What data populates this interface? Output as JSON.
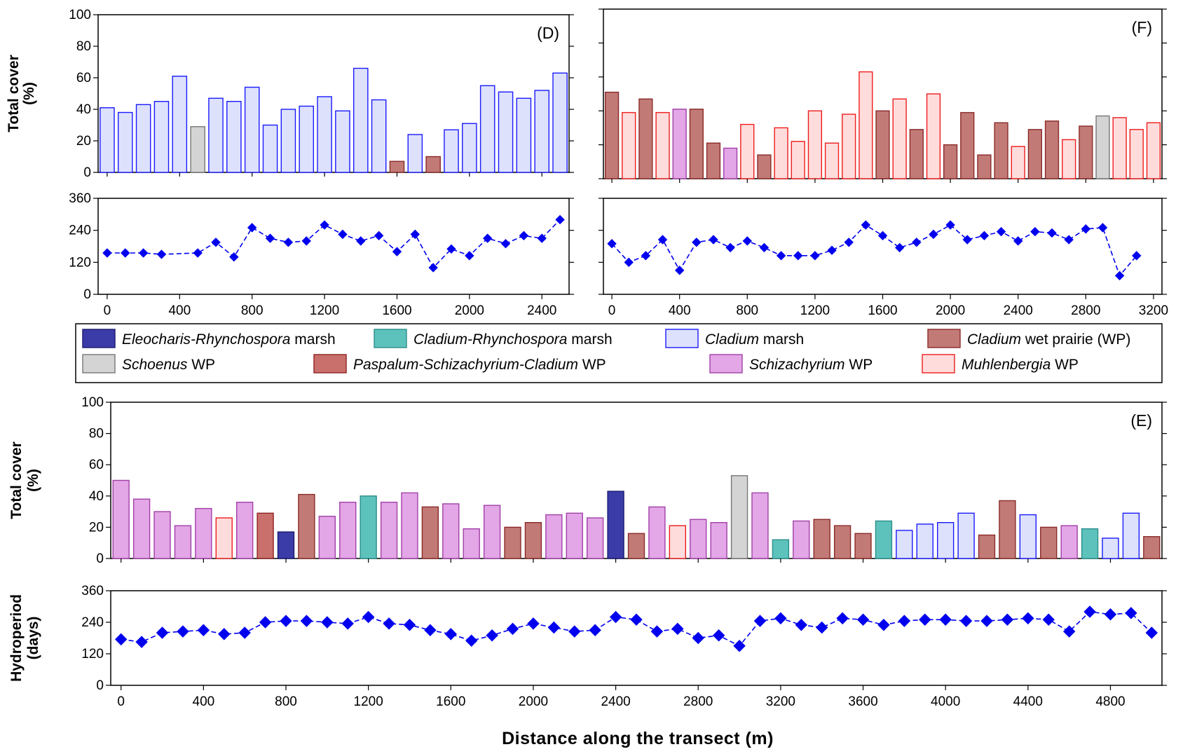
{
  "x_axis_label": "Distance along the transect (m)",
  "legend": [
    {
      "key": "ER",
      "genus": "Eleocharis-Rhynchospora",
      "suffix": " marsh",
      "color": "#3c3ca8",
      "stroke": "#1a1a70"
    },
    {
      "key": "CR",
      "genus": "Cladium-Rhynchospora",
      "suffix": " marsh",
      "color": "#5ec2bc",
      "stroke": "#2a8e8a"
    },
    {
      "key": "CM",
      "genus": "Cladium",
      "suffix": " marsh",
      "color": "#dde1fb",
      "stroke": "#1a1aff"
    },
    {
      "key": "CWP",
      "genus": "Cladium",
      "suffix": " wet prairie (WP)",
      "color": "#c27a76",
      "stroke": "#8a2a2a"
    },
    {
      "key": "SCH",
      "genus": "Schoenus",
      "suffix": " WP",
      "color": "#d4d4d4",
      "stroke": "#777777"
    },
    {
      "key": "PSC",
      "genus": "Paspalum-Schizachyrium-Cladium",
      "suffix": " WP",
      "color": "#c9706c",
      "stroke": "#8e2222"
    },
    {
      "key": "SZ",
      "genus": "Schizachyrium",
      "suffix": " WP",
      "color": "#e3a6e6",
      "stroke": "#a040a8"
    },
    {
      "key": "MU",
      "genus": "Muhlenbergia",
      "suffix": " WP",
      "color": "#ffdcdc",
      "stroke": "#ee1c1c"
    }
  ],
  "chart_data": [
    {
      "type": "bar",
      "panel": "(D)",
      "ylabel": [
        "Total cover",
        "(%)"
      ],
      "ylim": [
        0,
        100
      ],
      "yticks": [
        0,
        20,
        40,
        60,
        80,
        100
      ],
      "x": [
        0,
        100,
        200,
        300,
        400,
        500,
        600,
        700,
        800,
        900,
        1000,
        1100,
        1200,
        1300,
        1400,
        1500,
        1600,
        1700,
        1800,
        1900,
        2000,
        2100,
        2200,
        2300,
        2400,
        2500
      ],
      "values": [
        41,
        38,
        43,
        45,
        61,
        29,
        47,
        45,
        54,
        30,
        40,
        42,
        48,
        39,
        66,
        46,
        7,
        24,
        10,
        27,
        31,
        55,
        51,
        47,
        52,
        63
      ],
      "community": [
        "CM",
        "CM",
        "CM",
        "CM",
        "CM",
        "SCH",
        "CM",
        "CM",
        "CM",
        "CM",
        "CM",
        "CM",
        "CM",
        "CM",
        "CM",
        "CM",
        "CWP",
        "CM",
        "CWP",
        "CM",
        "CM",
        "CM",
        "CM",
        "CM",
        "CM",
        "CM"
      ]
    },
    {
      "type": "line",
      "ylabel": [
        "Hydroperiod",
        "(days)"
      ],
      "ylim": [
        0,
        360
      ],
      "yticks": [
        0,
        120,
        240,
        360
      ],
      "xlim": [
        -50,
        2550
      ],
      "xticks": [
        0,
        400,
        800,
        1200,
        1600,
        2000,
        2400
      ],
      "x": [
        0,
        100,
        200,
        300,
        500,
        600,
        700,
        800,
        900,
        1000,
        1100,
        1200,
        1300,
        1400,
        1500,
        1600,
        1700,
        1800,
        1900,
        2000,
        2100,
        2200,
        2300,
        2400,
        2500
      ],
      "values": [
        155,
        155,
        155,
        150,
        155,
        195,
        140,
        250,
        210,
        195,
        200,
        260,
        225,
        200,
        220,
        160,
        225,
        100,
        170,
        145,
        210,
        190,
        220,
        210,
        280
      ],
      "series_color": "#0000ee",
      "marker_size": "small"
    },
    {
      "type": "bar",
      "panel": "(F)",
      "ylabel": [],
      "ylim": [
        0,
        100
      ],
      "yticks": [
        0,
        20,
        40,
        60,
        80,
        100
      ],
      "show_tick_labels": false,
      "x": [
        0,
        100,
        200,
        300,
        400,
        500,
        600,
        700,
        800,
        900,
        1000,
        1100,
        1200,
        1300,
        1400,
        1500,
        1600,
        1700,
        1800,
        1900,
        2000,
        2100,
        2200,
        2300,
        2400,
        2500,
        2600,
        2700,
        2800,
        2900,
        3000,
        3100,
        3200
      ],
      "values": [
        51,
        39,
        47,
        39,
        41,
        41,
        21,
        18,
        32,
        14,
        30,
        22,
        40,
        21,
        38,
        63,
        40,
        47,
        29,
        50,
        20,
        39,
        14,
        33,
        19,
        29,
        34,
        23,
        31,
        37,
        36,
        29,
        33
      ],
      "community": [
        "CWP",
        "MU",
        "CWP",
        "MU",
        "SZ",
        "CWP",
        "CWP",
        "SZ",
        "MU",
        "CWP",
        "MU",
        "MU",
        "MU",
        "MU",
        "MU",
        "MU",
        "CWP",
        "MU",
        "CWP",
        "MU",
        "CWP",
        "CWP",
        "CWP",
        "CWP",
        "MU",
        "CWP",
        "CWP",
        "MU",
        "CWP",
        "SCH",
        "MU",
        "MU",
        "MU"
      ]
    },
    {
      "type": "line",
      "ylabel": [],
      "ylim": [
        0,
        360
      ],
      "yticks": [
        0,
        120,
        240,
        360
      ],
      "show_y_tick_labels": false,
      "xlim": [
        -50,
        3250
      ],
      "xticks": [
        0,
        400,
        800,
        1200,
        1600,
        2000,
        2400,
        2800,
        3200
      ],
      "x": [
        0,
        100,
        200,
        300,
        400,
        500,
        600,
        700,
        800,
        900,
        1000,
        1100,
        1200,
        1300,
        1400,
        1500,
        1600,
        1700,
        1800,
        1900,
        2000,
        2100,
        2200,
        2300,
        2400,
        2500,
        2600,
        2700,
        2800,
        2900,
        3000,
        3100
      ],
      "values": [
        190,
        120,
        145,
        205,
        90,
        195,
        205,
        175,
        200,
        175,
        145,
        145,
        145,
        165,
        195,
        260,
        220,
        175,
        195,
        225,
        260,
        205,
        220,
        235,
        200,
        235,
        230,
        205,
        245,
        250,
        70,
        145
      ],
      "series_color": "#0000ee",
      "marker_size": "small"
    },
    {
      "type": "bar",
      "panel": "(E)",
      "ylabel": [
        "Total cover",
        "(%)"
      ],
      "ylim": [
        0,
        100
      ],
      "yticks": [
        0,
        20,
        40,
        60,
        80,
        100
      ],
      "x": [
        0,
        100,
        200,
        300,
        400,
        500,
        600,
        700,
        800,
        900,
        1000,
        1100,
        1200,
        1300,
        1400,
        1500,
        1600,
        1700,
        1800,
        1900,
        2000,
        2100,
        2200,
        2300,
        2400,
        2500,
        2600,
        2700,
        2800,
        2900,
        3000,
        3100,
        3200,
        3300,
        3400,
        3500,
        3600,
        3700,
        3800,
        3900,
        4000,
        4100,
        4200,
        4300,
        4400,
        4500,
        4600,
        4700,
        4800,
        4900,
        5000
      ],
      "values": [
        50,
        38,
        30,
        21,
        32,
        26,
        36,
        29,
        17,
        41,
        27,
        36,
        40,
        36,
        42,
        33,
        35,
        19,
        34,
        20,
        23,
        28,
        29,
        26,
        43,
        16,
        33,
        21,
        25,
        23,
        53,
        42,
        12,
        24,
        25,
        21,
        16,
        24,
        18,
        22,
        23,
        29,
        15,
        37,
        28,
        20,
        21,
        19,
        13,
        29,
        14
      ],
      "community": [
        "SZ",
        "SZ",
        "SZ",
        "SZ",
        "SZ",
        "MU",
        "SZ",
        "PSC",
        "ER",
        "CWP",
        "SZ",
        "SZ",
        "CR",
        "SZ",
        "SZ",
        "CWP",
        "SZ",
        "SZ",
        "SZ",
        "CWP",
        "CWP",
        "SZ",
        "SZ",
        "SZ",
        "ER",
        "CWP",
        "SZ",
        "MU",
        "SZ",
        "SZ",
        "SCH",
        "SZ",
        "CR",
        "SZ",
        "CWP",
        "CWP",
        "CWP",
        "CR",
        "CM",
        "CM",
        "CM",
        "CM",
        "CWP",
        "CWP",
        "CM",
        "CWP",
        "SZ",
        "CR",
        "CM",
        "CM",
        "CWP"
      ]
    },
    {
      "type": "line",
      "ylabel": [
        "Hydroperiod",
        "(days)"
      ],
      "ylim": [
        0,
        360
      ],
      "yticks": [
        0,
        120,
        240,
        360
      ],
      "xlim": [
        -50,
        5050
      ],
      "xticks": [
        0,
        400,
        800,
        1200,
        1600,
        2000,
        2400,
        2800,
        3200,
        3600,
        4000,
        4400,
        4800
      ],
      "x": [
        0,
        100,
        200,
        300,
        400,
        500,
        600,
        700,
        800,
        900,
        1000,
        1100,
        1200,
        1300,
        1400,
        1500,
        1600,
        1700,
        1800,
        1900,
        2000,
        2100,
        2200,
        2300,
        2400,
        2500,
        2600,
        2700,
        2800,
        2900,
        3000,
        3100,
        3200,
        3300,
        3400,
        3500,
        3600,
        3700,
        3800,
        3900,
        4000,
        4100,
        4200,
        4300,
        4400,
        4500,
        4600,
        4700,
        4800,
        4900,
        5000
      ],
      "values": [
        175,
        165,
        200,
        205,
        210,
        195,
        200,
        240,
        245,
        245,
        240,
        235,
        260,
        235,
        230,
        210,
        195,
        170,
        190,
        215,
        235,
        220,
        205,
        210,
        260,
        250,
        205,
        215,
        180,
        190,
        150,
        245,
        255,
        230,
        220,
        255,
        250,
        230,
        245,
        250,
        250,
        245,
        245,
        250,
        255,
        250,
        205,
        280,
        270,
        275,
        200
      ],
      "series_color": "#0000ee",
      "marker_size": "large"
    }
  ]
}
